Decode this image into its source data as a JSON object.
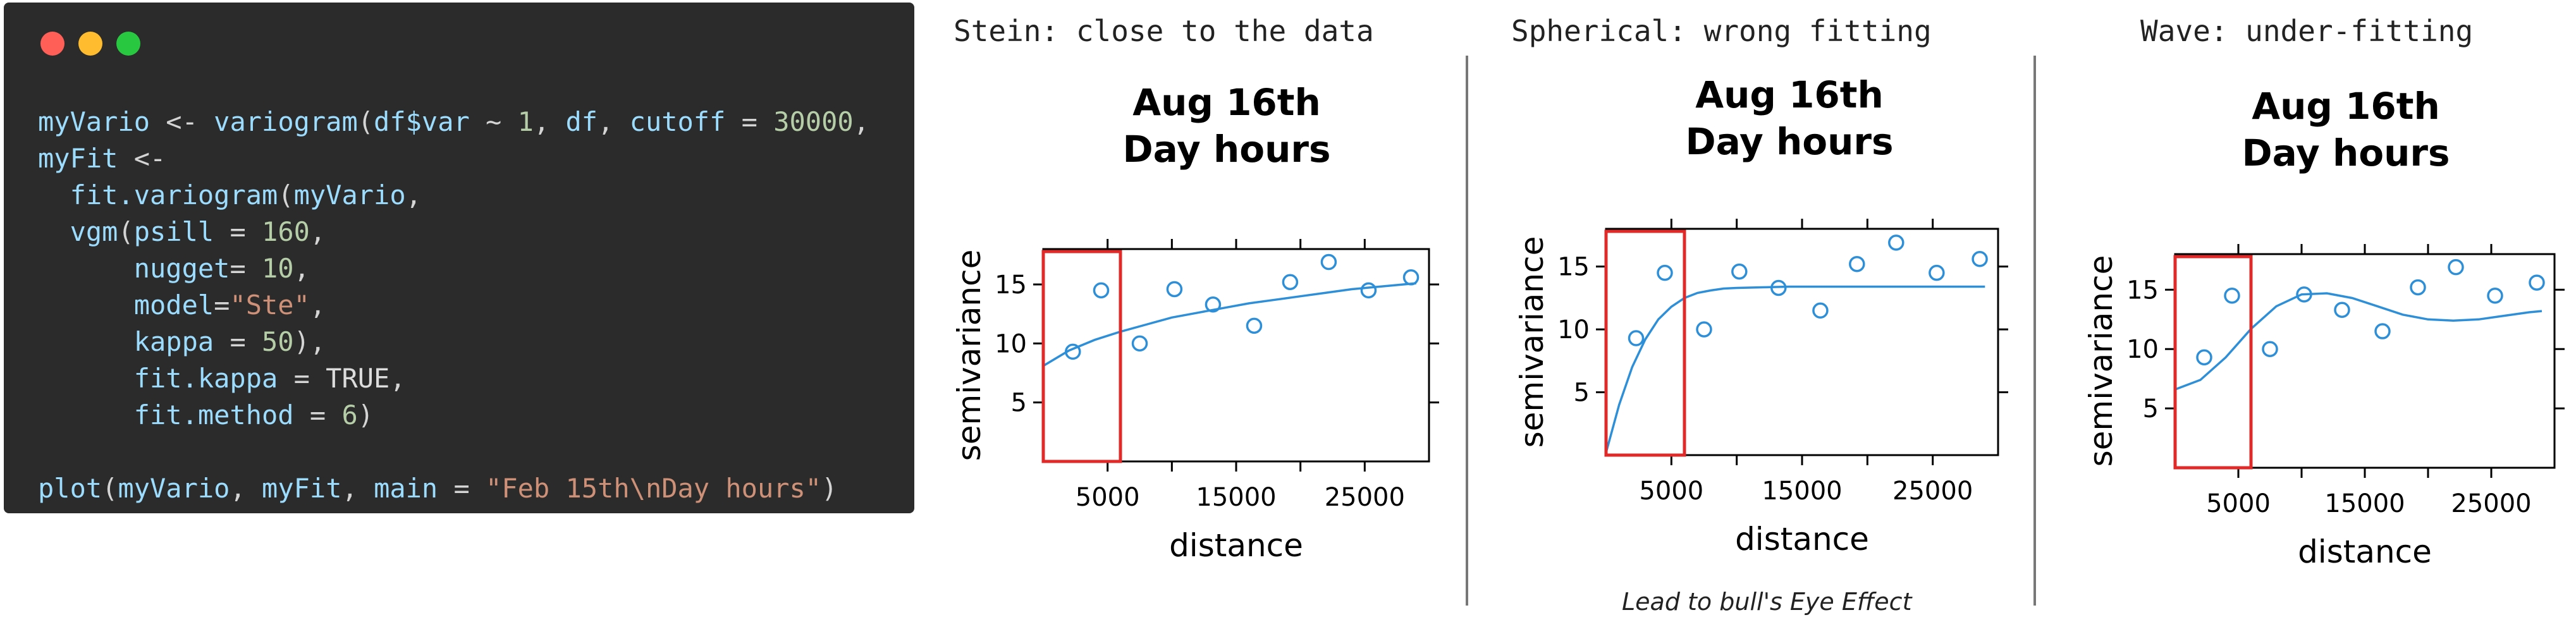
{
  "code_window": {
    "dot_colors": [
      "#ff5f57",
      "#febc2e",
      "#28c840"
    ],
    "lines": [
      [
        {
          "t": "myVario",
          "c": "var"
        },
        {
          "t": " <- ",
          "c": "op"
        },
        {
          "t": "variogram",
          "c": "fn"
        },
        {
          "t": "(",
          "c": "op"
        },
        {
          "t": "df$var",
          "c": "var"
        },
        {
          "t": " ~ ",
          "c": "op"
        },
        {
          "t": "1",
          "c": "num"
        },
        {
          "t": ", ",
          "c": "op"
        },
        {
          "t": "df",
          "c": "var"
        },
        {
          "t": ", ",
          "c": "op"
        },
        {
          "t": "cutoff",
          "c": "var"
        },
        {
          "t": " = ",
          "c": "op"
        },
        {
          "t": "30000",
          "c": "num"
        },
        {
          "t": ",",
          "c": "op"
        }
      ],
      [
        {
          "t": "myFit",
          "c": "var"
        },
        {
          "t": " <-",
          "c": "op"
        }
      ],
      [
        {
          "t": "  ",
          "c": "op"
        },
        {
          "t": "fit.variogram",
          "c": "fn"
        },
        {
          "t": "(",
          "c": "op"
        },
        {
          "t": "myVario",
          "c": "var"
        },
        {
          "t": ",",
          "c": "op"
        }
      ],
      [
        {
          "t": "  ",
          "c": "op"
        },
        {
          "t": "vgm",
          "c": "fn"
        },
        {
          "t": "(",
          "c": "op"
        },
        {
          "t": "psill",
          "c": "var"
        },
        {
          "t": " = ",
          "c": "op"
        },
        {
          "t": "160",
          "c": "num"
        },
        {
          "t": ",",
          "c": "op"
        }
      ],
      [
        {
          "t": "      ",
          "c": "op"
        },
        {
          "t": "nugget",
          "c": "var"
        },
        {
          "t": "= ",
          "c": "op"
        },
        {
          "t": "10",
          "c": "num"
        },
        {
          "t": ",",
          "c": "op"
        }
      ],
      [
        {
          "t": "      ",
          "c": "op"
        },
        {
          "t": "model",
          "c": "var"
        },
        {
          "t": "=",
          "c": "op"
        },
        {
          "t": "\"Ste\"",
          "c": "str"
        },
        {
          "t": ",",
          "c": "op"
        }
      ],
      [
        {
          "t": "      ",
          "c": "op"
        },
        {
          "t": "kappa",
          "c": "var"
        },
        {
          "t": " = ",
          "c": "op"
        },
        {
          "t": "50",
          "c": "num"
        },
        {
          "t": "),",
          "c": "op"
        }
      ],
      [
        {
          "t": "      ",
          "c": "op"
        },
        {
          "t": "fit.kappa",
          "c": "var"
        },
        {
          "t": " = ",
          "c": "op"
        },
        {
          "t": "TRUE",
          "c": "const"
        },
        {
          "t": ",",
          "c": "op"
        }
      ],
      [
        {
          "t": "      ",
          "c": "op"
        },
        {
          "t": "fit.method",
          "c": "var"
        },
        {
          "t": " = ",
          "c": "op"
        },
        {
          "t": "6",
          "c": "num"
        },
        {
          "t": ")",
          "c": "op"
        }
      ],
      [],
      [
        {
          "t": "plot",
          "c": "fn"
        },
        {
          "t": "(",
          "c": "op"
        },
        {
          "t": "myVario",
          "c": "var"
        },
        {
          "t": ", ",
          "c": "op"
        },
        {
          "t": "myFit",
          "c": "var"
        },
        {
          "t": ", ",
          "c": "op"
        },
        {
          "t": "main",
          "c": "var"
        },
        {
          "t": " = ",
          "c": "op"
        },
        {
          "t": "\"Feb 15th\\nDay hours\"",
          "c": "str"
        },
        {
          "t": ")",
          "c": "op"
        }
      ]
    ]
  },
  "panels": [
    {
      "title": "Stein: close to the data",
      "caption": ""
    },
    {
      "title": "Spherical: wrong fitting",
      "caption": "Lead to bull's Eye Effect"
    },
    {
      "title": "Wave: under-fitting",
      "caption": ""
    }
  ],
  "chart_data": [
    {
      "type": "scatter",
      "title": "Aug 16th\nDay hours",
      "xlabel": "distance",
      "ylabel": "semivariance",
      "xlim": [
        0,
        30000
      ],
      "ylim": [
        0,
        18
      ],
      "xticks": [
        5000,
        15000,
        25000
      ],
      "yticks": [
        5,
        10,
        15
      ],
      "points_x": [
        2300,
        4500,
        7500,
        10200,
        13200,
        16400,
        19200,
        22200,
        25300,
        28600
      ],
      "points_y": [
        9.3,
        14.5,
        10.0,
        14.6,
        13.3,
        11.5,
        15.2,
        16.9,
        14.5,
        15.6
      ],
      "fit_x": [
        0,
        2000,
        4000,
        6000,
        8000,
        10000,
        12000,
        14000,
        16000,
        18000,
        20000,
        22000,
        24000,
        26000,
        28000,
        29000
      ],
      "fit_y": [
        8.1,
        9.4,
        10.3,
        11.0,
        11.6,
        12.2,
        12.6,
        13.0,
        13.4,
        13.7,
        14.0,
        14.3,
        14.6,
        14.8,
        15.0,
        15.1
      ],
      "highlight_x": [
        0,
        6000
      ],
      "line_color": "#2d8fd8",
      "point_color": "#2d8fd8",
      "box_color": "#e02a2a",
      "grid": false
    },
    {
      "type": "scatter",
      "title": "Aug 16th\nDay hours",
      "xlabel": "distance",
      "ylabel": "semivariance",
      "xlim": [
        0,
        30000
      ],
      "ylim": [
        0,
        18
      ],
      "xticks": [
        5000,
        15000,
        25000
      ],
      "yticks": [
        5,
        10,
        15
      ],
      "points_x": [
        2300,
        4500,
        7500,
        10200,
        13200,
        16400,
        19200,
        22200,
        25300,
        28600
      ],
      "points_y": [
        9.3,
        14.5,
        10.0,
        14.6,
        13.3,
        11.5,
        15.2,
        16.9,
        14.5,
        15.6
      ],
      "fit_x": [
        0,
        1000,
        2000,
        3000,
        4000,
        5000,
        6000,
        7000,
        8000,
        9000,
        10000,
        12000,
        14000,
        17000,
        20000,
        24000,
        29000
      ],
      "fit_y": [
        0.2,
        4.0,
        7.0,
        9.2,
        10.8,
        11.8,
        12.5,
        12.9,
        13.1,
        13.25,
        13.3,
        13.35,
        13.4,
        13.4,
        13.4,
        13.4,
        13.4
      ],
      "highlight_x": [
        0,
        6000
      ],
      "line_color": "#2d8fd8",
      "point_color": "#2d8fd8",
      "box_color": "#e02a2a",
      "grid": false
    },
    {
      "type": "scatter",
      "title": "Aug 16th\nDay hours",
      "xlabel": "distance",
      "ylabel": "semivariance",
      "xlim": [
        0,
        30000
      ],
      "ylim": [
        0,
        18
      ],
      "xticks": [
        5000,
        15000,
        25000
      ],
      "yticks": [
        5,
        10,
        15
      ],
      "points_x": [
        2300,
        4500,
        7500,
        10200,
        13200,
        16400,
        19200,
        22200,
        25300,
        28600
      ],
      "points_y": [
        9.3,
        14.5,
        10.0,
        14.6,
        13.3,
        11.5,
        15.2,
        16.9,
        14.5,
        15.6
      ],
      "fit_x": [
        0,
        2000,
        4000,
        6000,
        8000,
        10000,
        12000,
        14000,
        16000,
        18000,
        20000,
        22000,
        24000,
        26000,
        28000,
        29000
      ],
      "fit_y": [
        6.6,
        7.4,
        9.3,
        11.7,
        13.6,
        14.6,
        14.7,
        14.3,
        13.6,
        12.9,
        12.5,
        12.4,
        12.5,
        12.8,
        13.1,
        13.2
      ],
      "highlight_x": [
        0,
        6000
      ],
      "line_color": "#2d8fd8",
      "point_color": "#2d8fd8",
      "box_color": "#e02a2a",
      "grid": false
    }
  ]
}
